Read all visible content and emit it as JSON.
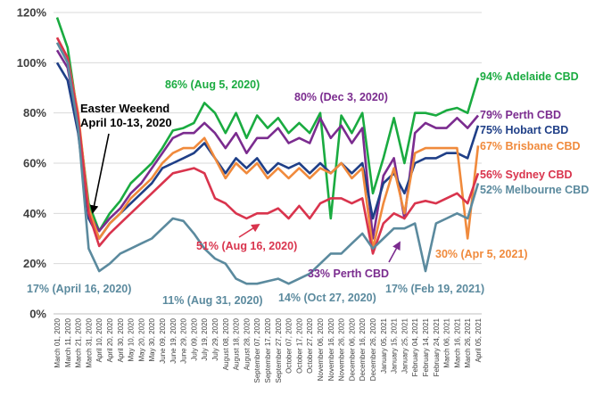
{
  "chart_data": {
    "type": "line",
    "title": "",
    "xlabel": "",
    "ylabel": "",
    "ylim": [
      0,
      120
    ],
    "yticks": [
      "0%",
      "20%",
      "40%",
      "60%",
      "80%",
      "100%",
      "120%"
    ],
    "grid": "horizontal",
    "x_dates": [
      "March 01, 2020",
      "March 11, 2020",
      "March 21, 2020",
      "March 31, 2020",
      "April 10, 2020",
      "April 20, 2020",
      "April 30, 2020",
      "May 10, 2020",
      "May 20, 2020",
      "May 30, 2020",
      "June 09, 2020",
      "June 19, 2020",
      "June 29, 2020",
      "July 09, 2020",
      "July 19, 2020",
      "July 29, 2020",
      "August 08, 2020",
      "August 18, 2020",
      "August 28, 2020",
      "September 07, 2020",
      "September 17, 2020",
      "September 27, 2020",
      "October 07, 2020",
      "October 17, 2020",
      "October 27, 2020",
      "November 06, 2020",
      "November 16, 2020",
      "November 26, 2020",
      "December 06, 2020",
      "December 16, 2020",
      "December 26, 2020",
      "January 05, 2021",
      "January 15, 2021",
      "January 25, 2021",
      "February 04, 2021",
      "February 14, 2021",
      "February 24, 2021",
      "March 06, 2021",
      "March 16, 2021",
      "March 26, 2021",
      "April 05, 2021"
    ],
    "series": [
      {
        "name": "94% Adelaide CBD",
        "color": "#1aab40",
        "values": [
          118,
          106,
          78,
          44,
          33,
          40,
          45,
          52,
          56,
          60,
          66,
          73,
          74,
          76,
          84,
          80,
          72,
          80,
          70,
          79,
          74,
          78,
          72,
          76,
          72,
          80,
          38,
          79,
          72,
          80,
          48,
          62,
          78,
          60,
          80,
          80,
          79,
          81,
          82,
          80,
          94
        ]
      },
      {
        "name": "79% Perth CBD",
        "color": "#7b2c8f",
        "values": [
          105,
          98,
          76,
          40,
          33,
          38,
          42,
          48,
          52,
          58,
          64,
          70,
          72,
          72,
          76,
          72,
          66,
          72,
          64,
          70,
          70,
          74,
          68,
          70,
          68,
          78,
          70,
          75,
          68,
          74,
          30,
          55,
          62,
          38,
          72,
          76,
          74,
          74,
          78,
          74,
          79
        ]
      },
      {
        "name": "75% Hobart CBD",
        "color": "#1f3f87",
        "values": [
          100,
          93,
          72,
          38,
          30,
          36,
          40,
          44,
          48,
          52,
          58,
          60,
          62,
          64,
          68,
          62,
          56,
          62,
          58,
          62,
          56,
          60,
          58,
          60,
          56,
          60,
          56,
          60,
          56,
          60,
          38,
          52,
          56,
          48,
          60,
          62,
          62,
          64,
          64,
          62,
          75
        ]
      },
      {
        "name": "67% Brisbane CBD",
        "color": "#f08a3c",
        "values": [
          110,
          102,
          80,
          42,
          30,
          36,
          40,
          46,
          50,
          54,
          60,
          64,
          66,
          66,
          70,
          62,
          54,
          60,
          56,
          60,
          54,
          58,
          54,
          58,
          54,
          58,
          56,
          60,
          54,
          58,
          26,
          44,
          58,
          40,
          64,
          66,
          66,
          66,
          66,
          30,
          67
        ]
      },
      {
        "name": "56% Sydney CBD",
        "color": "#d9344d",
        "values": [
          110,
          102,
          78,
          40,
          27,
          32,
          36,
          40,
          44,
          48,
          52,
          56,
          57,
          58,
          56,
          46,
          44,
          40,
          38,
          40,
          40,
          42,
          38,
          43,
          38,
          44,
          46,
          46,
          44,
          46,
          24,
          36,
          40,
          38,
          44,
          45,
          44,
          46,
          48,
          44,
          56
        ]
      },
      {
        "name": "52% Melbourne CBD",
        "color": "#5b8a9e",
        "values": [
          108,
          100,
          74,
          26,
          17,
          20,
          24,
          26,
          28,
          30,
          34,
          38,
          37,
          32,
          26,
          22,
          20,
          14,
          12,
          12,
          13,
          14,
          12,
          14,
          16,
          20,
          24,
          24,
          28,
          32,
          26,
          30,
          34,
          34,
          36,
          17,
          36,
          38,
          40,
          38,
          52
        ]
      }
    ],
    "annotations": [
      {
        "text": "Easter Weekend",
        "color": "#000000"
      },
      {
        "text": "April 10-13, 2020",
        "color": "#000000"
      },
      {
        "text": "86% (Aug 5, 2020)",
        "color": "#1aab40"
      },
      {
        "text": "80% (Dec 3, 2020)",
        "color": "#7b2c8f"
      },
      {
        "text": "51% (Aug 16, 2020)",
        "color": "#d9344d"
      },
      {
        "text": "33% Perth CBD",
        "color": "#7b2c8f"
      },
      {
        "text": "30% (Apr 5, 2021)",
        "color": "#f08a3c"
      },
      {
        "text": "17% (April 16, 2020)",
        "color": "#5b8a9e"
      },
      {
        "text": "11% (Aug 31, 2020)",
        "color": "#5b8a9e"
      },
      {
        "text": "14% (Oct 27, 2020)",
        "color": "#5b8a9e"
      },
      {
        "text": "17% (Feb 19, 2021)",
        "color": "#5b8a9e"
      }
    ]
  }
}
